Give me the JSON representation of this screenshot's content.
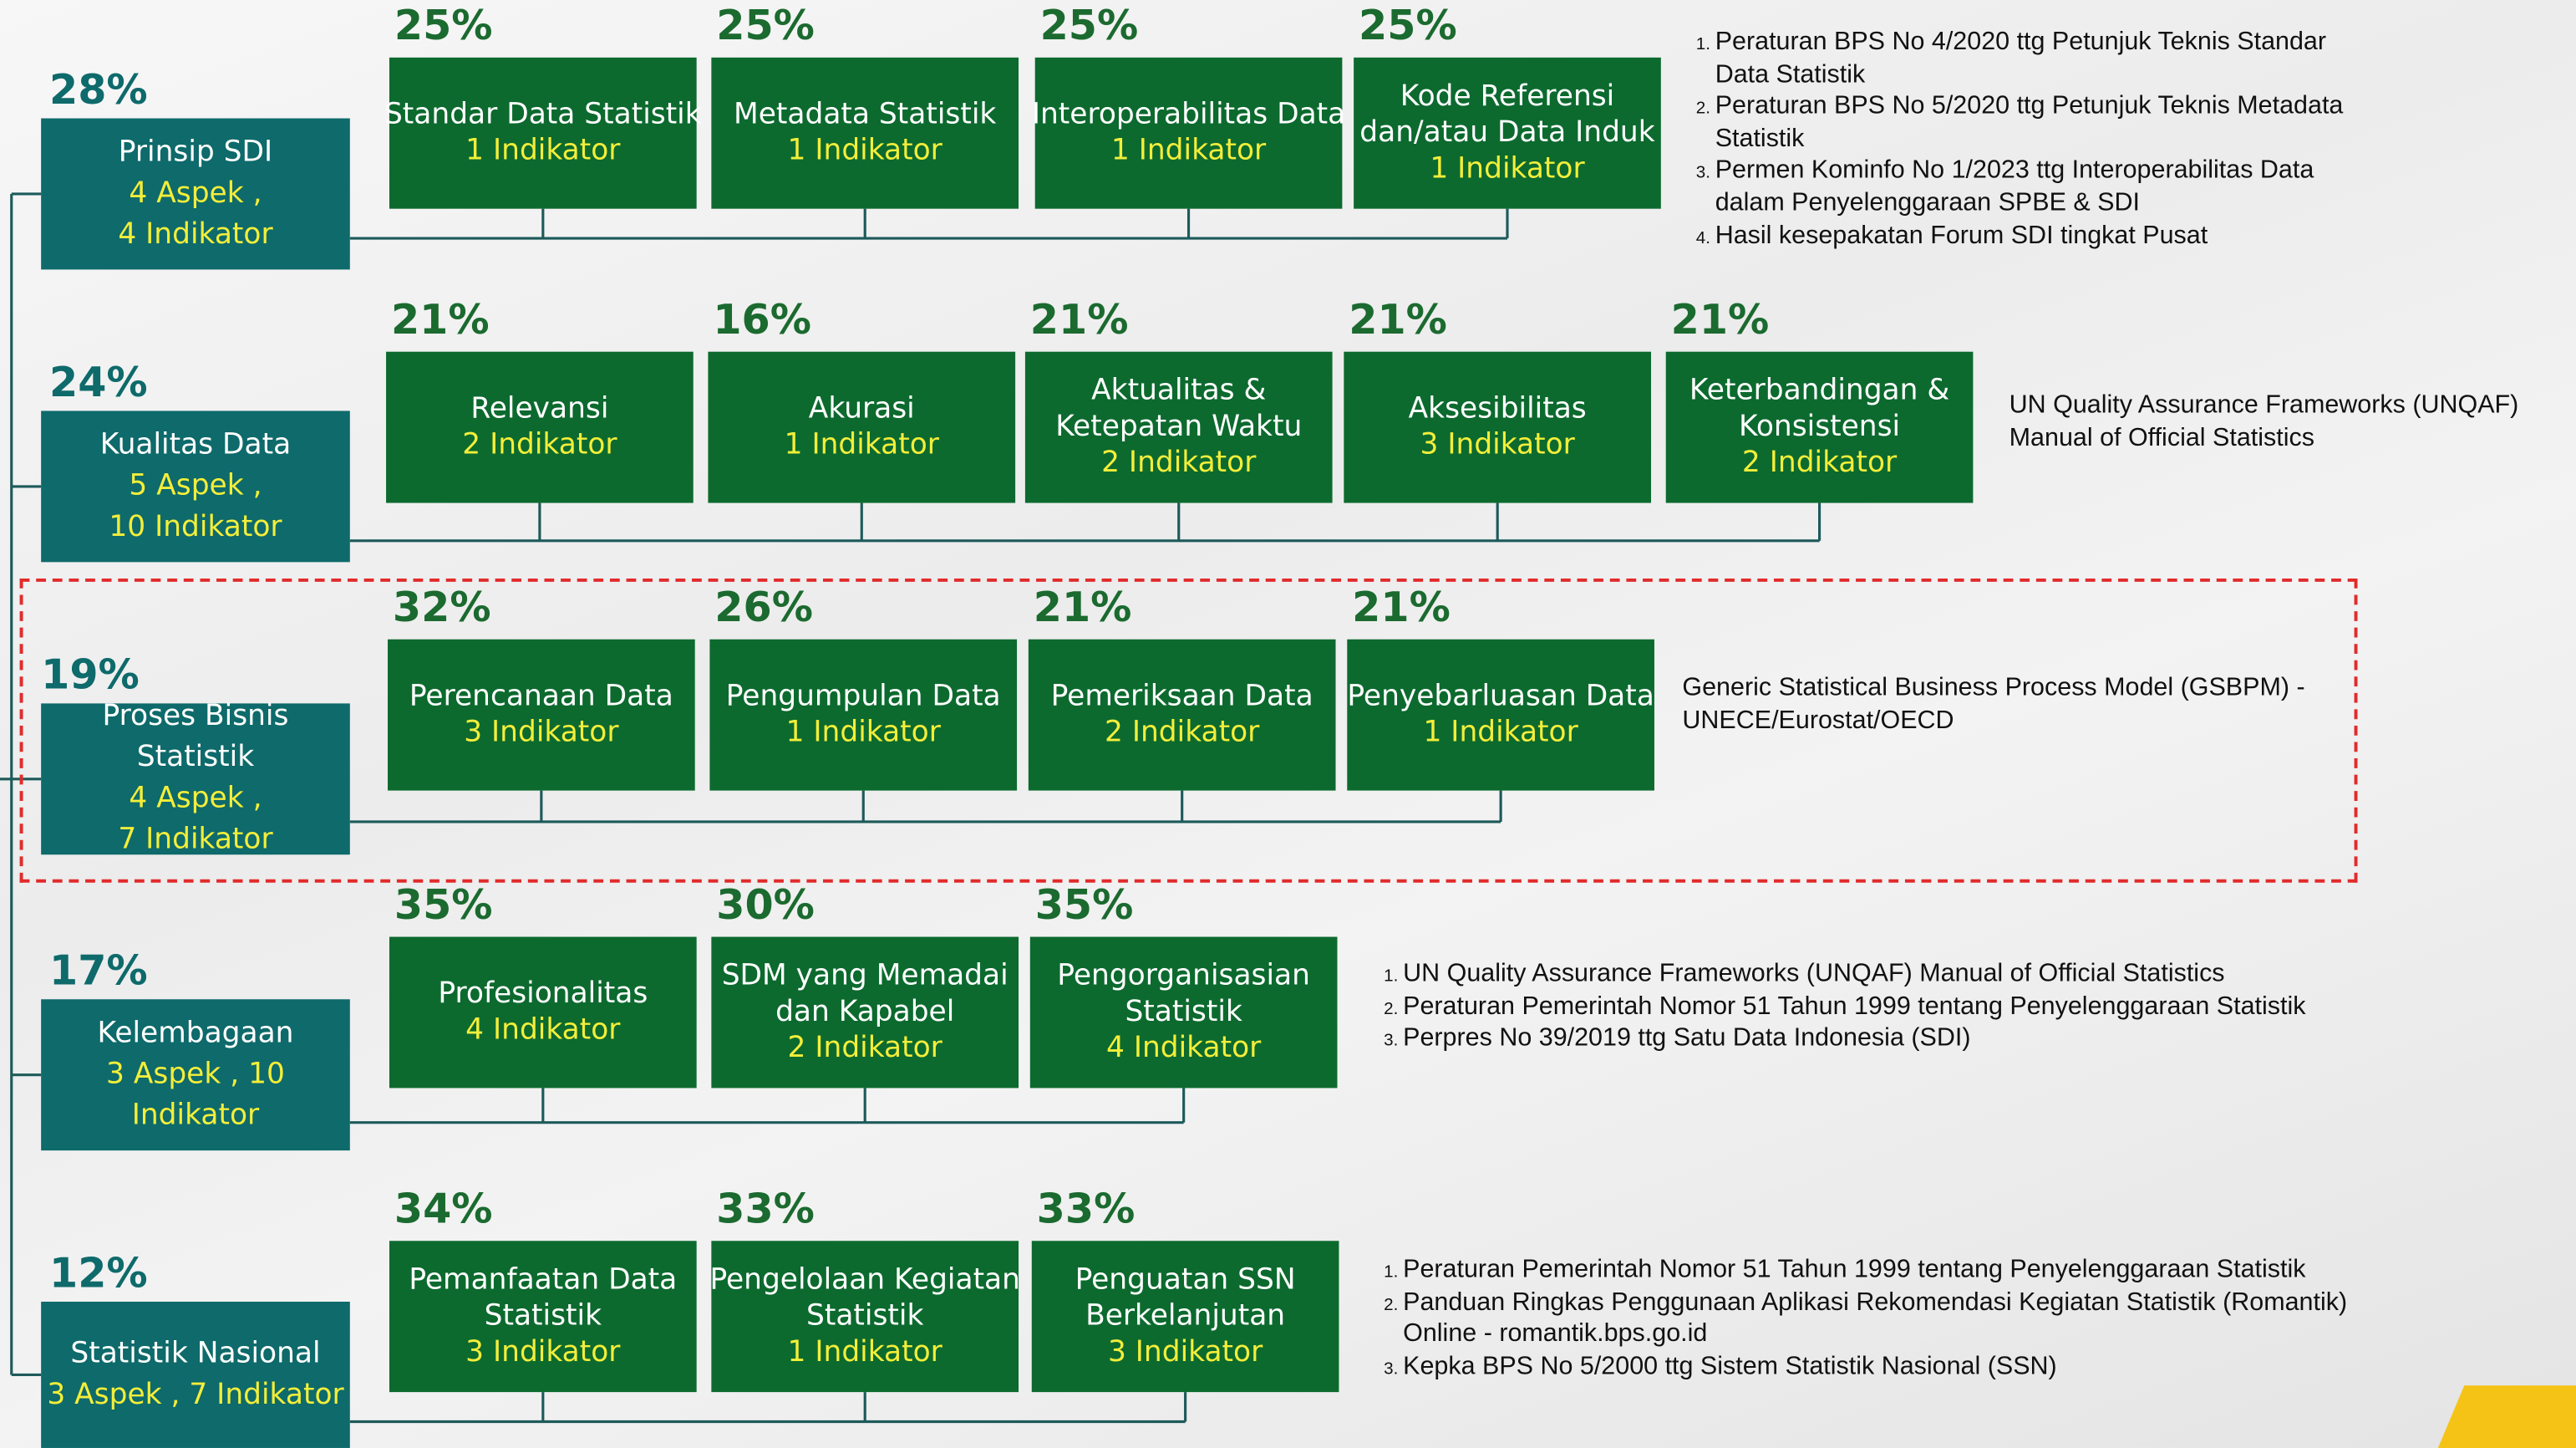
{
  "rows": [
    {
      "percent": "28%",
      "name": "Prinsip SDI",
      "details": [
        "4 Aspek ,",
        "4 Indikator"
      ],
      "children": [
        {
          "percent": "25%",
          "title": [
            "Standar Data Statistik"
          ],
          "indikator": "1 Indikator"
        },
        {
          "percent": "25%",
          "title": [
            "Metadata Statistik"
          ],
          "indikator": "1 Indikator"
        },
        {
          "percent": "25%",
          "title": [
            "Interoperabilitas Data"
          ],
          "indikator": "1 Indikator"
        },
        {
          "percent": "25%",
          "title": [
            "Kode Referensi",
            "dan/atau Data Induk"
          ],
          "indikator": "1 Indikator"
        }
      ],
      "references": {
        "numbered": true,
        "items": [
          [
            "Peraturan BPS No 4/2020 ttg Petunjuk Teknis Standar",
            "Data Statistik"
          ],
          [
            "Peraturan BPS No 5/2020 ttg Petunjuk Teknis Metadata",
            "Statistik"
          ],
          [
            "Permen Kominfo No 1/2023 ttg Interoperabilitas Data",
            "dalam Penyelenggaraan SPBE & SDI"
          ],
          [
            "Hasil kesepakatan Forum SDI tingkat Pusat"
          ]
        ]
      }
    },
    {
      "percent": "24%",
      "name": "Kualitas Data",
      "details": [
        "5 Aspek ,",
        "10 Indikator"
      ],
      "children": [
        {
          "percent": "21%",
          "title": [
            "Relevansi"
          ],
          "indikator": "2 Indikator"
        },
        {
          "percent": "16%",
          "title": [
            "Akurasi"
          ],
          "indikator": "1 Indikator"
        },
        {
          "percent": "21%",
          "title": [
            "Aktualitas &",
            "Ketepatan Waktu"
          ],
          "indikator": "2 Indikator"
        },
        {
          "percent": "21%",
          "title": [
            "Aksesibilitas"
          ],
          "indikator": "3 Indikator"
        },
        {
          "percent": "21%",
          "title": [
            "Keterbandingan &",
            "Konsistensi"
          ],
          "indikator": "2 Indikator"
        }
      ],
      "references": {
        "numbered": false,
        "items": [
          [
            "UN Quality Assurance Frameworks (UNQAF)",
            "Manual of Official Statistics"
          ]
        ]
      }
    },
    {
      "percent": "19%",
      "name": "Proses Bisnis Statistik",
      "details": [
        "4 Aspek ,",
        "7 Indikator"
      ],
      "children": [
        {
          "percent": "32%",
          "title": [
            "Perencanaan Data"
          ],
          "indikator": "3 Indikator"
        },
        {
          "percent": "26%",
          "title": [
            "Pengumpulan Data"
          ],
          "indikator": "1 Indikator"
        },
        {
          "percent": "21%",
          "title": [
            "Pemeriksaan Data"
          ],
          "indikator": "2 Indikator"
        },
        {
          "percent": "21%",
          "title": [
            "Penyebarluasan Data"
          ],
          "indikator": "1 Indikator"
        }
      ],
      "references": {
        "numbered": false,
        "items": [
          [
            "Generic Statistical Business Process Model (GSBPM) -",
            "UNECE/Eurostat/OECD"
          ]
        ]
      }
    },
    {
      "percent": "17%",
      "name": "Kelembagaan",
      "details": [
        "3 Aspek , 10 Indikator"
      ],
      "children": [
        {
          "percent": "35%",
          "title": [
            "Profesionalitas"
          ],
          "indikator": "4 Indikator"
        },
        {
          "percent": "30%",
          "title": [
            "SDM yang Memadai",
            "dan Kapabel"
          ],
          "indikator": "2 Indikator"
        },
        {
          "percent": "35%",
          "title": [
            "Pengorganisasian",
            "Statistik"
          ],
          "indikator": "4 Indikator"
        }
      ],
      "references": {
        "numbered": true,
        "items": [
          [
            "UN Quality Assurance Frameworks (UNQAF) Manual of Official Statistics"
          ],
          [
            "Peraturan Pemerintah Nomor 51 Tahun 1999 tentang Penyelenggaraan Statistik"
          ],
          [
            "Perpres No 39/2019 ttg Satu Data Indonesia (SDI)"
          ]
        ]
      }
    },
    {
      "percent": "12%",
      "name": "Statistik Nasional",
      "details": [
        "3 Aspek , 7 Indikator"
      ],
      "children": [
        {
          "percent": "34%",
          "title": [
            "Pemanfaatan Data",
            "Statistik"
          ],
          "indikator": "3 Indikator"
        },
        {
          "percent": "33%",
          "title": [
            "Pengelolaan Kegiatan",
            "Statistik"
          ],
          "indikator": "1 Indikator"
        },
        {
          "percent": "33%",
          "title": [
            "Penguatan SSN",
            "Berkelanjutan"
          ],
          "indikator": "3 Indikator"
        }
      ],
      "references": {
        "numbered": true,
        "items": [
          [
            "Peraturan Pemerintah Nomor 51 Tahun 1999 tentang Penyelenggaraan Statistik"
          ],
          [
            "Panduan Ringkas Penggunaan Aplikasi Rekomendasi Kegiatan Statistik (Romantik)",
            "Online - romantik.bps.go.id"
          ],
          [
            "Kepka BPS No 5/2000 ttg Sistem Statistik Nasional (SSN)"
          ]
        ]
      }
    }
  ]
}
